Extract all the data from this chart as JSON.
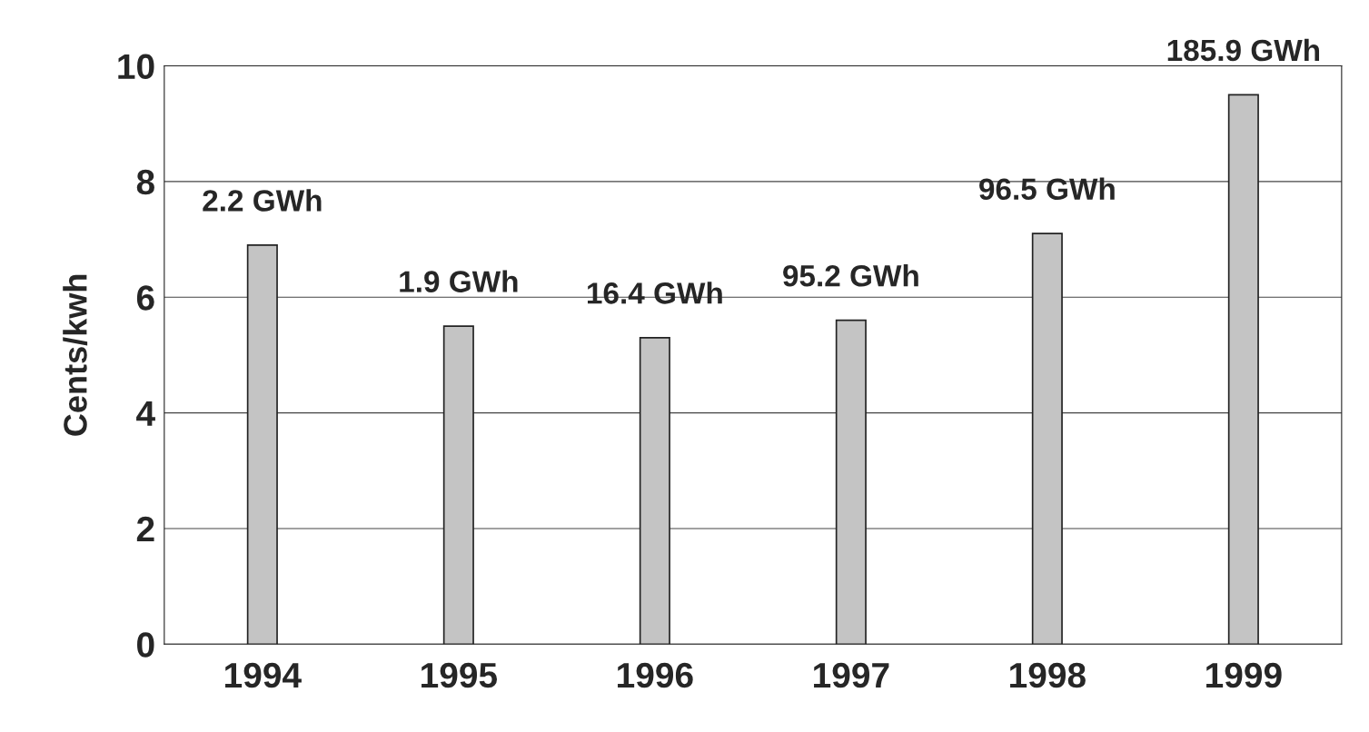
{
  "chart_data": {
    "type": "bar",
    "ylabel": "Cents/kwh",
    "categories": [
      "1994",
      "1995",
      "1996",
      "1997",
      "1998",
      "1999"
    ],
    "values": [
      6.9,
      5.5,
      5.3,
      5.6,
      7.1,
      9.5
    ],
    "color": "#c4c4c4",
    "ylim": [
      0,
      10
    ],
    "yticks": [
      0,
      2,
      4,
      6,
      8,
      10
    ],
    "grid": "y",
    "annotations": [
      {
        "text": "2.2 GWh",
        "x": "1994",
        "y": 6.9
      },
      {
        "text": "1.9 GWh",
        "x": "1995",
        "y": 5.5
      },
      {
        "text": "16.4 GWh",
        "x": "1996",
        "y": 5.3
      },
      {
        "text": "95.2 GWh",
        "x": "1997",
        "y": 5.6
      },
      {
        "text": "96.5 GWh",
        "x": "1998",
        "y": 7.1
      },
      {
        "text": "185.9 GWh",
        "x": "1999",
        "y": 9.5
      }
    ]
  }
}
